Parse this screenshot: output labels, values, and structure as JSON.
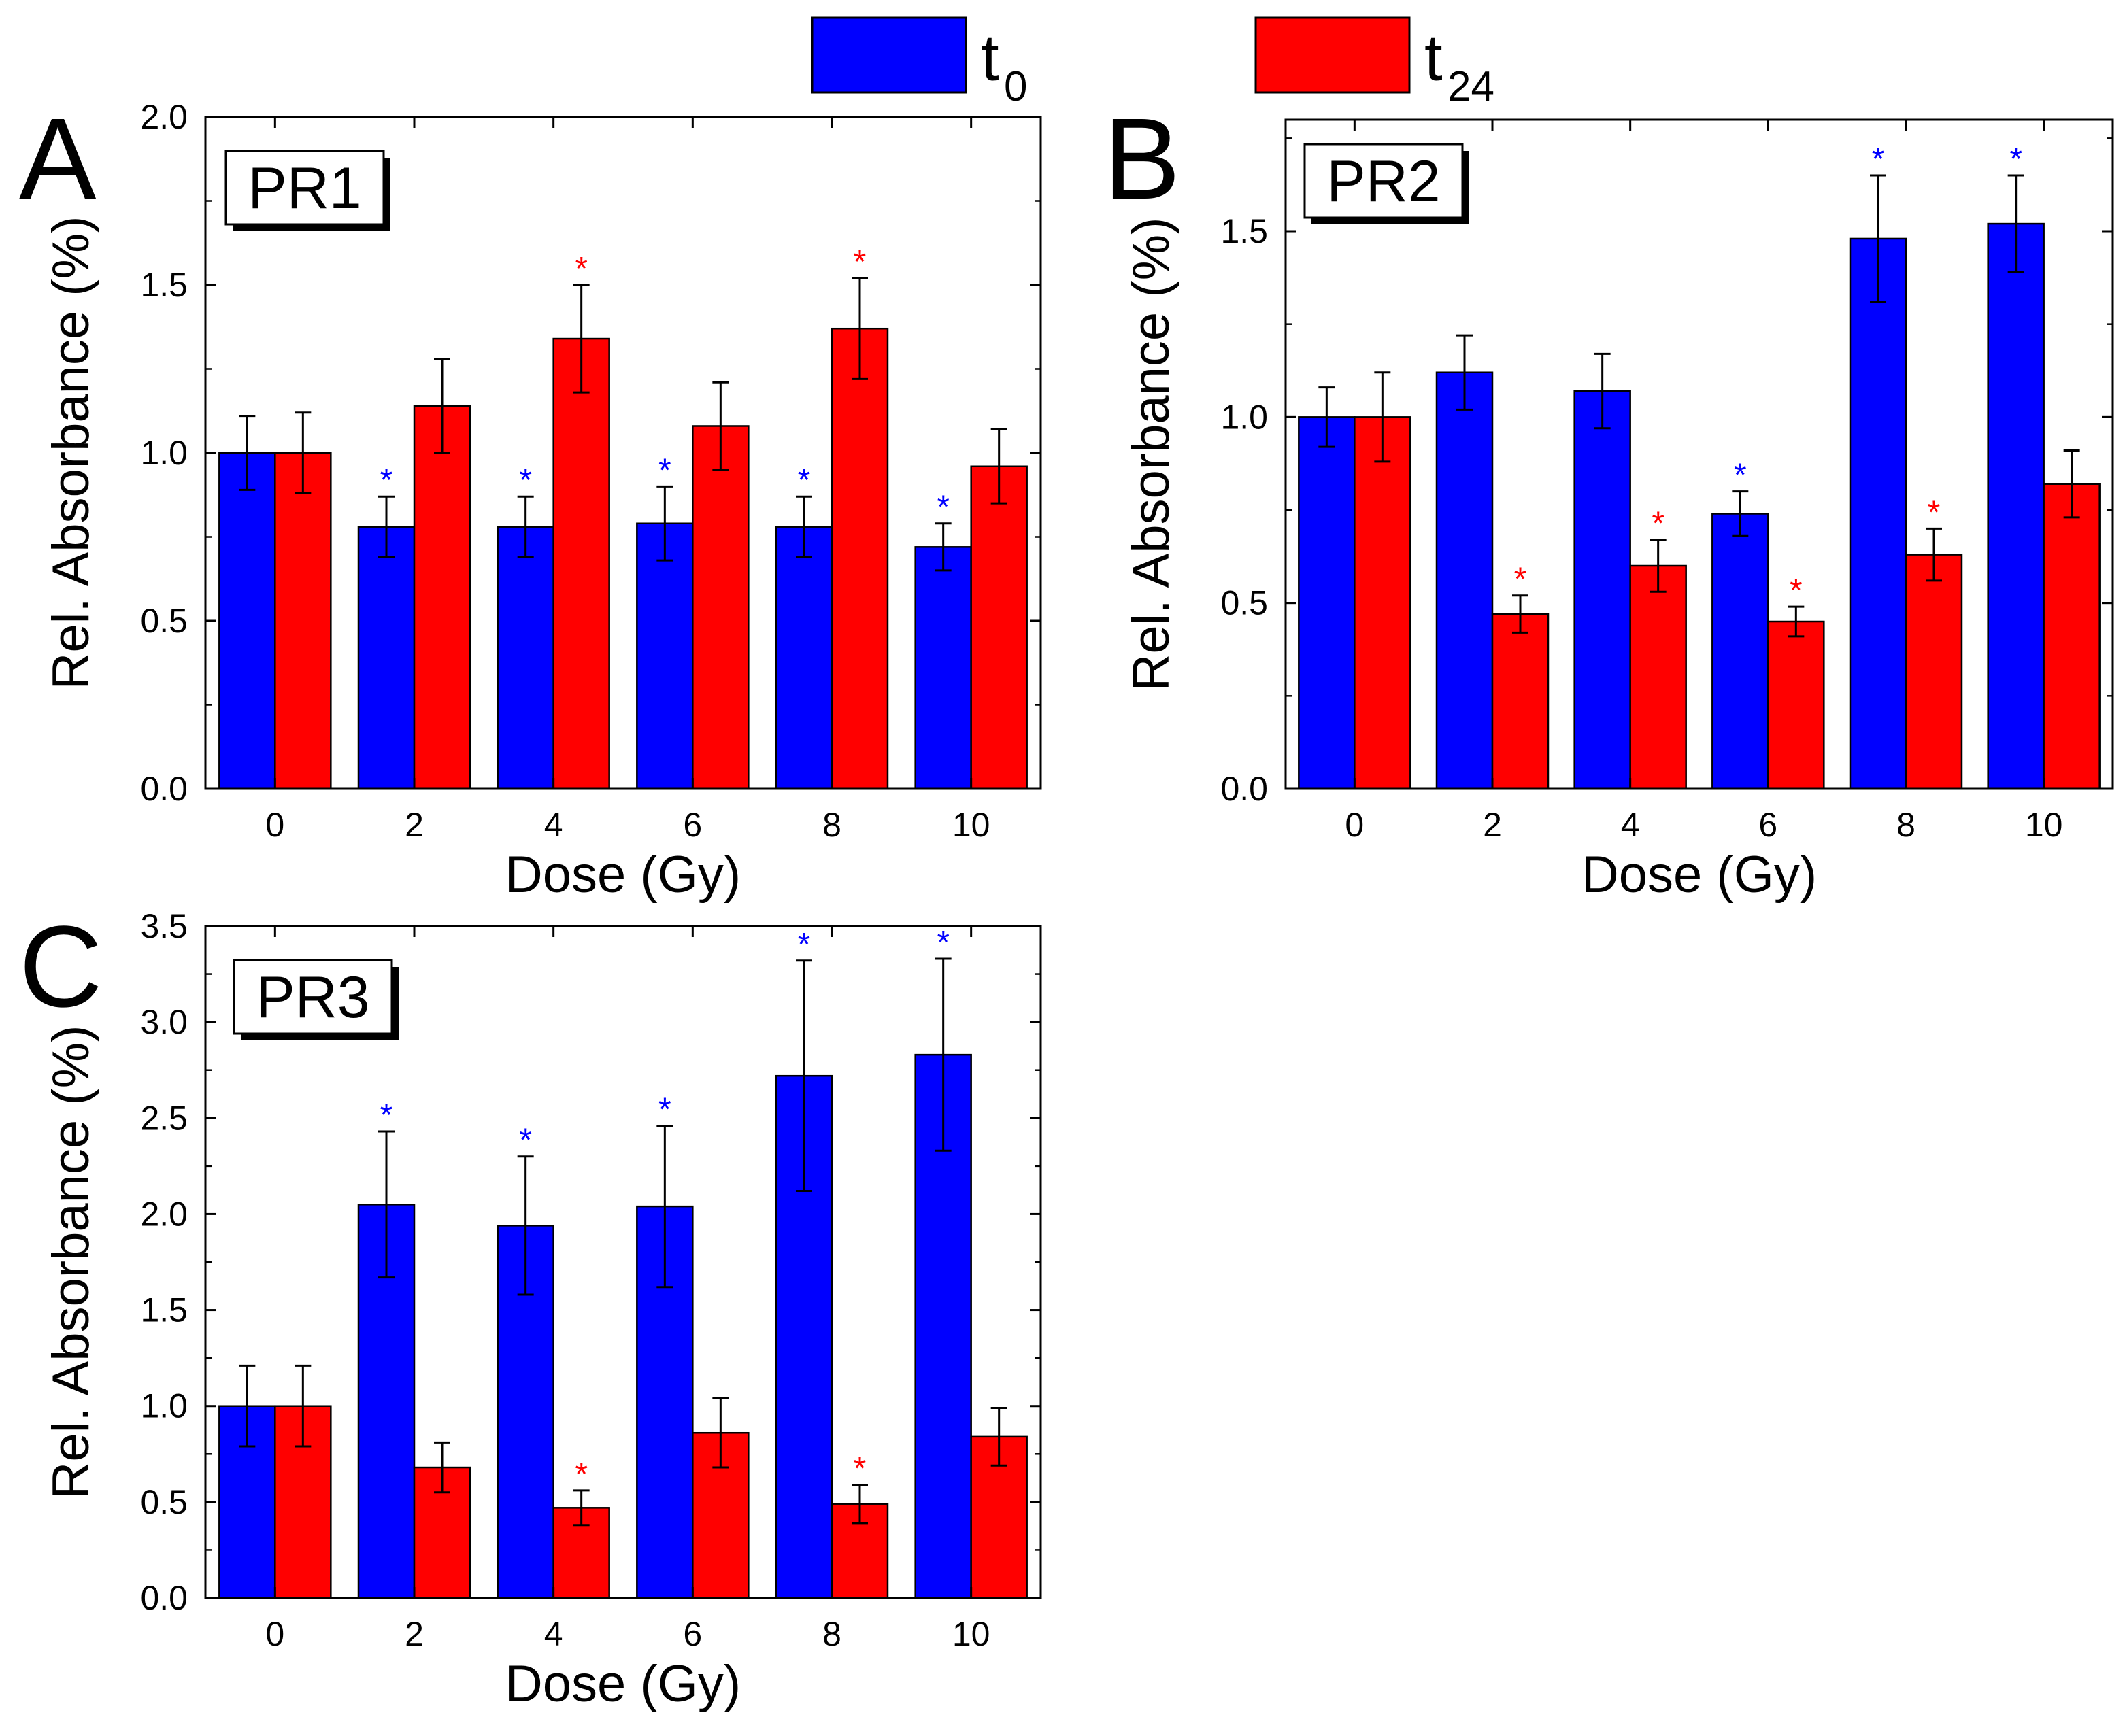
{
  "legend": {
    "placement": "top-center",
    "items": [
      {
        "label": "t",
        "subscript": "0",
        "color": "#0000ff"
      },
      {
        "label": "t",
        "subscript": "24",
        "color": "#ff0000"
      }
    ]
  },
  "colors": {
    "t0": "#0000ff",
    "t24": "#ff0000",
    "axis": "#000000"
  },
  "chart_data": [
    {
      "type": "bar",
      "panel_letter": "A",
      "title": "PR1",
      "xlabel": "Dose (Gy)",
      "ylabel": "Rel. Absorbance (%)",
      "categories": [
        "0",
        "2",
        "4",
        "6",
        "8",
        "10"
      ],
      "ylim": [
        0,
        2.0
      ],
      "yticks": [
        0.0,
        0.5,
        1.0,
        1.5,
        2.0
      ],
      "ytick_labels": [
        "0.0",
        "0.5",
        "1.0",
        "1.5",
        "2.0"
      ],
      "grid": false,
      "significance_marker": "*",
      "series": [
        {
          "key": "t0",
          "values": [
            1.0,
            0.78,
            0.78,
            0.79,
            0.78,
            0.72
          ],
          "errors": [
            0.11,
            0.09,
            0.09,
            0.11,
            0.09,
            0.07
          ],
          "significant": [
            false,
            true,
            true,
            true,
            true,
            true
          ]
        },
        {
          "key": "t24",
          "values": [
            1.0,
            1.14,
            1.34,
            1.08,
            1.37,
            0.96
          ],
          "errors": [
            0.12,
            0.14,
            0.16,
            0.13,
            0.15,
            0.11
          ],
          "significant": [
            false,
            false,
            true,
            false,
            true,
            false
          ]
        }
      ]
    },
    {
      "type": "bar",
      "panel_letter": "B",
      "title": "PR2",
      "xlabel": "Dose (Gy)",
      "ylabel": "Rel. Absorbance (%)",
      "categories": [
        "0",
        "2",
        "4",
        "6",
        "8",
        "10"
      ],
      "ylim": [
        0,
        1.8
      ],
      "yticks": [
        0.0,
        0.5,
        1.0,
        1.5
      ],
      "ytick_labels": [
        "0.0",
        "0.5",
        "1.0",
        "1.5"
      ],
      "grid": false,
      "significance_marker": "*",
      "series": [
        {
          "key": "t0",
          "values": [
            1.0,
            1.12,
            1.07,
            0.74,
            1.48,
            1.52
          ],
          "errors": [
            0.08,
            0.1,
            0.1,
            0.06,
            0.17,
            0.13
          ],
          "significant": [
            false,
            false,
            false,
            true,
            true,
            true
          ]
        },
        {
          "key": "t24",
          "values": [
            1.0,
            0.47,
            0.6,
            0.45,
            0.63,
            0.82
          ],
          "errors": [
            0.12,
            0.05,
            0.07,
            0.04,
            0.07,
            0.09
          ],
          "significant": [
            false,
            true,
            true,
            true,
            true,
            false
          ]
        }
      ]
    },
    {
      "type": "bar",
      "panel_letter": "C",
      "title": "PR3",
      "xlabel": "Dose (Gy)",
      "ylabel": "Rel. Absorbance (%)",
      "categories": [
        "0",
        "2",
        "4",
        "6",
        "8",
        "10"
      ],
      "ylim": [
        0,
        3.5
      ],
      "yticks": [
        0.0,
        0.5,
        1.0,
        1.5,
        2.0,
        2.5,
        3.0,
        3.5
      ],
      "ytick_labels": [
        "0.0",
        "0.5",
        "1.0",
        "1.5",
        "2.0",
        "2.5",
        "3.0",
        "3.5"
      ],
      "grid": false,
      "significance_marker": "*",
      "series": [
        {
          "key": "t0",
          "values": [
            1.0,
            2.05,
            1.94,
            2.04,
            2.72,
            2.83
          ],
          "errors": [
            0.21,
            0.38,
            0.36,
            0.42,
            0.6,
            0.5
          ],
          "significant": [
            false,
            true,
            true,
            true,
            true,
            true
          ]
        },
        {
          "key": "t24",
          "values": [
            1.0,
            0.68,
            0.47,
            0.86,
            0.49,
            0.84
          ],
          "errors": [
            0.21,
            0.13,
            0.09,
            0.18,
            0.1,
            0.15
          ],
          "significant": [
            false,
            false,
            true,
            false,
            true,
            false
          ]
        }
      ]
    }
  ]
}
